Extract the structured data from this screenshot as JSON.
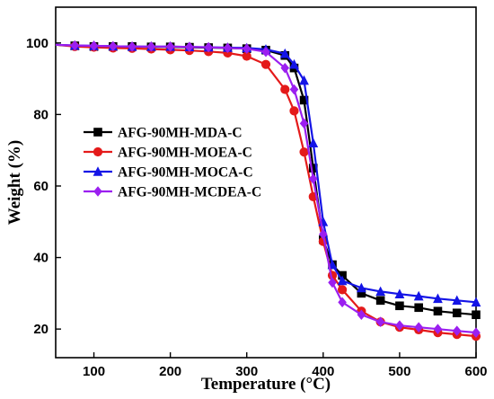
{
  "chart_data": {
    "type": "line",
    "xlabel": "Temperature (°C)",
    "ylabel": "Weight (%)",
    "xlim": [
      50,
      600
    ],
    "ylim": [
      12,
      110
    ],
    "xticks": [
      100,
      200,
      300,
      400,
      500,
      600
    ],
    "yticks": [
      20,
      40,
      60,
      80,
      100
    ],
    "grid": false,
    "legend_position": "center-left",
    "series": [
      {
        "name": "AFG-90MH-MDA-C",
        "color": "#000000",
        "marker": "square",
        "x": [
          50,
          75,
          100,
          125,
          150,
          175,
          200,
          225,
          250,
          275,
          300,
          325,
          350,
          362,
          375,
          387,
          400,
          412,
          425,
          450,
          475,
          500,
          525,
          550,
          575,
          600
        ],
        "y": [
          99.5,
          99.2,
          99,
          99,
          99,
          98.9,
          98.9,
          98.8,
          98.7,
          98.6,
          98.4,
          98,
          96.5,
          93,
          84,
          65,
          45,
          38,
          35,
          30,
          28,
          26.5,
          26,
          25,
          24.5,
          24
        ]
      },
      {
        "name": "AFG-90MH-MOEA-C",
        "color": "#e41a1a",
        "marker": "circle",
        "x": [
          50,
          75,
          100,
          125,
          150,
          175,
          200,
          225,
          250,
          275,
          300,
          325,
          350,
          362,
          375,
          387,
          400,
          412,
          425,
          450,
          475,
          500,
          525,
          550,
          575,
          600
        ],
        "y": [
          99.5,
          99,
          98.8,
          98.6,
          98.5,
          98.3,
          98.1,
          97.9,
          97.6,
          97.2,
          96.3,
          94,
          87,
          81,
          69.5,
          57,
          44.5,
          35,
          31,
          25,
          22,
          20.5,
          19.8,
          19,
          18.5,
          18
        ]
      },
      {
        "name": "AFG-90MH-MOCA-C",
        "color": "#1414e6",
        "marker": "triangle",
        "x": [
          50,
          75,
          100,
          125,
          150,
          175,
          200,
          225,
          250,
          275,
          300,
          325,
          350,
          362,
          375,
          387,
          400,
          412,
          425,
          450,
          475,
          500,
          525,
          550,
          575,
          600
        ],
        "y": [
          99.5,
          99.3,
          99.2,
          99.1,
          99,
          99,
          99,
          98.9,
          98.8,
          98.7,
          98.6,
          98.2,
          97,
          94,
          89.5,
          72,
          50,
          38,
          33.5,
          31.5,
          30.5,
          29.8,
          29.2,
          28.5,
          28,
          27.5
        ]
      },
      {
        "name": "AFG-90MH-MCDEA-C",
        "color": "#9b1ff0",
        "marker": "diamond",
        "x": [
          50,
          75,
          100,
          125,
          150,
          175,
          200,
          225,
          250,
          275,
          300,
          325,
          350,
          362,
          375,
          387,
          400,
          412,
          425,
          450,
          475,
          500,
          525,
          550,
          575,
          600
        ],
        "y": [
          99.5,
          99.3,
          99.2,
          99.1,
          99,
          99,
          99,
          98.9,
          98.8,
          98.6,
          98.4,
          97.5,
          93,
          87,
          77.5,
          62,
          46.5,
          33,
          27.5,
          24,
          22,
          21,
          20.5,
          20,
          19.5,
          19
        ]
      }
    ]
  }
}
